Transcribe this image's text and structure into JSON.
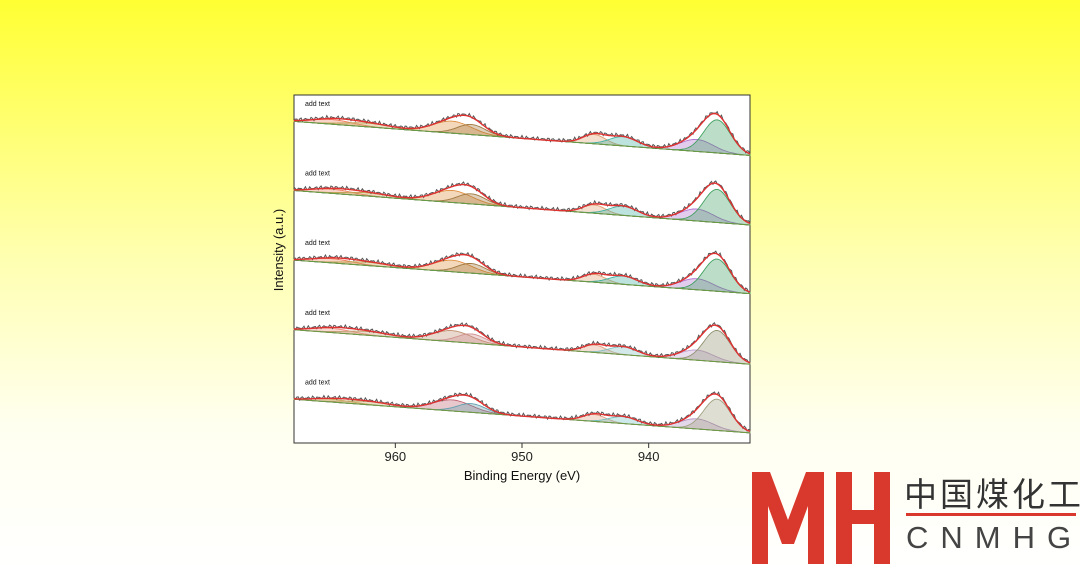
{
  "chart_data": {
    "type": "line",
    "title": "",
    "xlabel": "Binding Energy (eV)",
    "ylabel": "Intensity (a.u.)",
    "xlim": [
      968,
      932
    ],
    "x_reversed": true,
    "x_ticks": [
      960,
      950,
      940
    ],
    "panels": [
      {
        "label": "add text",
        "background": {
          "start": 0.94,
          "end": 0.2
        },
        "components": [
          {
            "center": 965.0,
            "width": 1.6,
            "height": 0.1,
            "color": "#f08060"
          },
          {
            "center": 962.2,
            "width": 1.8,
            "height": 0.08,
            "color": "#c0a050"
          },
          {
            "center": 955.5,
            "width": 1.5,
            "height": 0.26,
            "color": "#e09040"
          },
          {
            "center": 954.0,
            "width": 1.1,
            "height": 0.22,
            "color": "#a07840"
          },
          {
            "center": 944.3,
            "width": 0.9,
            "height": 0.2,
            "color": "#e0a070"
          },
          {
            "center": 942.0,
            "width": 1.1,
            "height": 0.2,
            "color": "#40b0a0"
          },
          {
            "center": 936.2,
            "width": 1.3,
            "height": 0.26,
            "color": "#b070d0"
          },
          {
            "center": 934.6,
            "width": 1.05,
            "height": 0.72,
            "color": "#40a060"
          }
        ]
      },
      {
        "label": "add text",
        "background": {
          "start": 0.95,
          "end": 0.2
        },
        "components": [
          {
            "center": 965.0,
            "width": 1.6,
            "height": 0.09,
            "color": "#f08060"
          },
          {
            "center": 962.2,
            "width": 1.8,
            "height": 0.07,
            "color": "#c0a050"
          },
          {
            "center": 955.5,
            "width": 1.5,
            "height": 0.26,
            "color": "#e09040"
          },
          {
            "center": 954.0,
            "width": 1.1,
            "height": 0.22,
            "color": "#a07840"
          },
          {
            "center": 944.3,
            "width": 0.9,
            "height": 0.18,
            "color": "#e0a070"
          },
          {
            "center": 942.0,
            "width": 1.1,
            "height": 0.2,
            "color": "#40b0a0"
          },
          {
            "center": 936.2,
            "width": 1.3,
            "height": 0.26,
            "color": "#b070d0"
          },
          {
            "center": 934.6,
            "width": 1.05,
            "height": 0.72,
            "color": "#40a060"
          }
        ]
      },
      {
        "label": "add text",
        "background": {
          "start": 0.95,
          "end": 0.22
        },
        "components": [
          {
            "center": 965.0,
            "width": 1.6,
            "height": 0.09,
            "color": "#f08060"
          },
          {
            "center": 962.2,
            "width": 1.8,
            "height": 0.07,
            "color": "#c0a050"
          },
          {
            "center": 955.5,
            "width": 1.5,
            "height": 0.25,
            "color": "#e09040"
          },
          {
            "center": 954.0,
            "width": 1.1,
            "height": 0.21,
            "color": "#a07840"
          },
          {
            "center": 944.3,
            "width": 0.9,
            "height": 0.17,
            "color": "#e0a070"
          },
          {
            "center": 942.0,
            "width": 1.1,
            "height": 0.18,
            "color": "#40b0a0"
          },
          {
            "center": 936.2,
            "width": 1.3,
            "height": 0.24,
            "color": "#b070d0"
          },
          {
            "center": 934.6,
            "width": 1.05,
            "height": 0.7,
            "color": "#40a060"
          }
        ]
      },
      {
        "label": "add text",
        "background": {
          "start": 0.95,
          "end": 0.2
        },
        "components": [
          {
            "center": 965.0,
            "width": 1.6,
            "height": 0.09,
            "color": "#f09080"
          },
          {
            "center": 962.2,
            "width": 1.8,
            "height": 0.08,
            "color": "#c0a070"
          },
          {
            "center": 955.5,
            "width": 1.5,
            "height": 0.24,
            "color": "#c09070"
          },
          {
            "center": 954.0,
            "width": 1.1,
            "height": 0.2,
            "color": "#d09090"
          },
          {
            "center": 944.3,
            "width": 0.9,
            "height": 0.16,
            "color": "#e0a080"
          },
          {
            "center": 942.0,
            "width": 1.1,
            "height": 0.17,
            "color": "#80c0c0"
          },
          {
            "center": 936.2,
            "width": 1.3,
            "height": 0.22,
            "color": "#c0a0d0"
          },
          {
            "center": 934.6,
            "width": 1.05,
            "height": 0.68,
            "color": "#909070"
          }
        ]
      },
      {
        "label": "add text",
        "background": {
          "start": 0.95,
          "end": 0.22
        },
        "components": [
          {
            "center": 965.0,
            "width": 1.6,
            "height": 0.06,
            "color": "#d0b060"
          },
          {
            "center": 962.2,
            "width": 1.8,
            "height": 0.07,
            "color": "#c0a060"
          },
          {
            "center": 955.5,
            "width": 1.5,
            "height": 0.24,
            "color": "#c06070"
          },
          {
            "center": 954.0,
            "width": 1.1,
            "height": 0.19,
            "color": "#60a0b0"
          },
          {
            "center": 944.3,
            "width": 0.9,
            "height": 0.15,
            "color": "#e0a080"
          },
          {
            "center": 942.0,
            "width": 1.1,
            "height": 0.15,
            "color": "#70c0c0"
          },
          {
            "center": 936.2,
            "width": 1.3,
            "height": 0.22,
            "color": "#b090c0"
          },
          {
            "center": 934.6,
            "width": 1.05,
            "height": 0.68,
            "color": "#a0a080"
          }
        ]
      }
    ],
    "fit_color": "#e03030",
    "raw_color": "#555555"
  },
  "logo": {
    "chinese_text": "中国煤化工",
    "english_text": "CNMHG",
    "brand_color": "#d9392c"
  }
}
